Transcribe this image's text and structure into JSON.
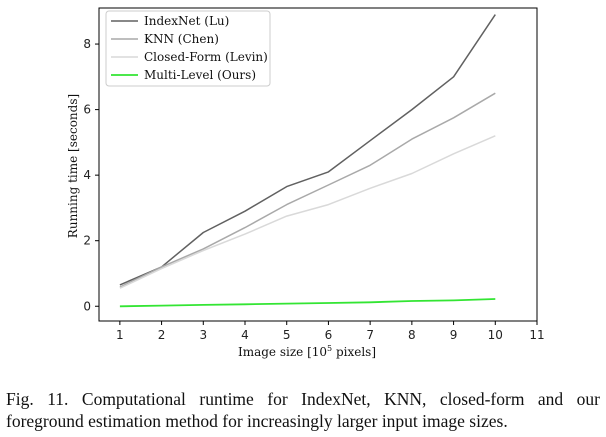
{
  "chart_data": {
    "type": "line",
    "xlabel_prefix": "Image size [10",
    "xlabel_sup": "5",
    "xlabel_suffix": " pixels]",
    "ylabel": "Running time [seconds]",
    "xlim": [
      0.5,
      11
    ],
    "ylim": [
      -0.45,
      9.1
    ],
    "xticks": [
      1,
      2,
      3,
      4,
      5,
      6,
      7,
      8,
      9,
      10,
      11
    ],
    "yticks": [
      0,
      2,
      4,
      6,
      8
    ],
    "grid": false,
    "legend_position": "top-left",
    "series": [
      {
        "name": "IndexNet (Lu)",
        "color": "#616161",
        "width": 1.5,
        "x": [
          1,
          2,
          3,
          4,
          5,
          6,
          7,
          8,
          9,
          10
        ],
        "y": [
          0.65,
          1.2,
          2.25,
          2.9,
          3.65,
          4.1,
          5.05,
          6.0,
          7.0,
          8.9
        ]
      },
      {
        "name": "KNN (Chen)",
        "color": "#a9a9a9",
        "width": 1.5,
        "x": [
          1,
          2,
          3,
          4,
          5,
          6,
          7,
          8,
          9,
          10
        ],
        "y": [
          0.58,
          1.2,
          1.75,
          2.4,
          3.1,
          3.7,
          4.3,
          5.1,
          5.75,
          6.5
        ]
      },
      {
        "name": "Closed-Form (Levin)",
        "color": "#d9d9d9",
        "width": 1.5,
        "x": [
          1,
          2,
          3,
          4,
          5,
          6,
          7,
          8,
          9,
          10
        ],
        "y": [
          0.55,
          1.15,
          1.7,
          2.2,
          2.75,
          3.1,
          3.6,
          4.05,
          4.65,
          5.2
        ]
      },
      {
        "name": "Multi-Level (Ours)",
        "color": "#33e533",
        "width": 1.8,
        "x": [
          1,
          2,
          3,
          4,
          5,
          6,
          7,
          8,
          9,
          10
        ],
        "y": [
          0.0,
          0.02,
          0.04,
          0.06,
          0.08,
          0.1,
          0.12,
          0.16,
          0.18,
          0.22
        ]
      }
    ]
  },
  "caption": "Fig. 11.  Computational runtime for IndexNet, KNN, closed-form and our foreground estimation method for increasingly larger input image sizes."
}
